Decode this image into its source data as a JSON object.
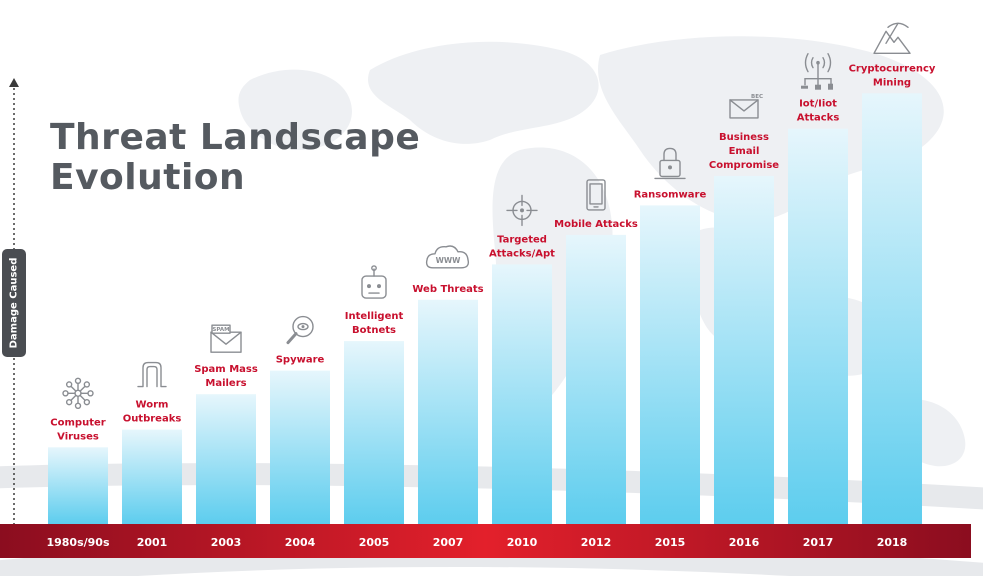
{
  "title_lines": [
    "Threat Landscape",
    "Evolution"
  ],
  "ylabel": "Damage Caused",
  "colors": {
    "bar_top": "#e6f6fc",
    "bar_bottom": "#5dcdee",
    "label": "#c8102e",
    "timeline_dark": "#8b0d1f",
    "timeline_bright": "#e3202b",
    "title": "#555a60",
    "icon": "#8a8d92"
  },
  "icons": [
    "nodes-icon",
    "worm-icon",
    "spam-mail-icon",
    "magnifier-icon",
    "robot-icon",
    "cloud-icon",
    "crosshair-icon",
    "mobile-icon",
    "lock-icon",
    "bec-mail-icon",
    "iot-icon",
    "mining-pick-icon"
  ],
  "chart_data": {
    "type": "bar",
    "ylabel": "Damage Caused",
    "categories": [
      "1980s/90s",
      "2001",
      "2003",
      "2004",
      "2005",
      "2007",
      "2010",
      "2012",
      "2015",
      "2016",
      "2017",
      "2018"
    ],
    "series": [
      {
        "values": [
          1.3,
          1.6,
          2.2,
          2.6,
          3.1,
          3.8,
          4.4,
          4.9,
          5.4,
          5.9,
          6.7,
          7.3
        ],
        "labels": [
          [
            "Computer",
            "Viruses"
          ],
          [
            "Worm",
            "Outbreaks"
          ],
          [
            "Spam Mass",
            "Mailers"
          ],
          [
            "Spyware"
          ],
          [
            "Intelligent",
            "Botnets"
          ],
          [
            "Web Threats"
          ],
          [
            "Targeted",
            "Attacks/Apt"
          ],
          [
            "Mobile Attacks"
          ],
          [
            "Ransomware"
          ],
          [
            "Business",
            "Email",
            "Compromise"
          ],
          [
            "Iot/Iiot",
            "Attacks"
          ],
          [
            "Cryptocurrency",
            "Mining"
          ]
        ]
      }
    ],
    "ylim": [
      0,
      8
    ],
    "grid": false,
    "legend": "none"
  }
}
